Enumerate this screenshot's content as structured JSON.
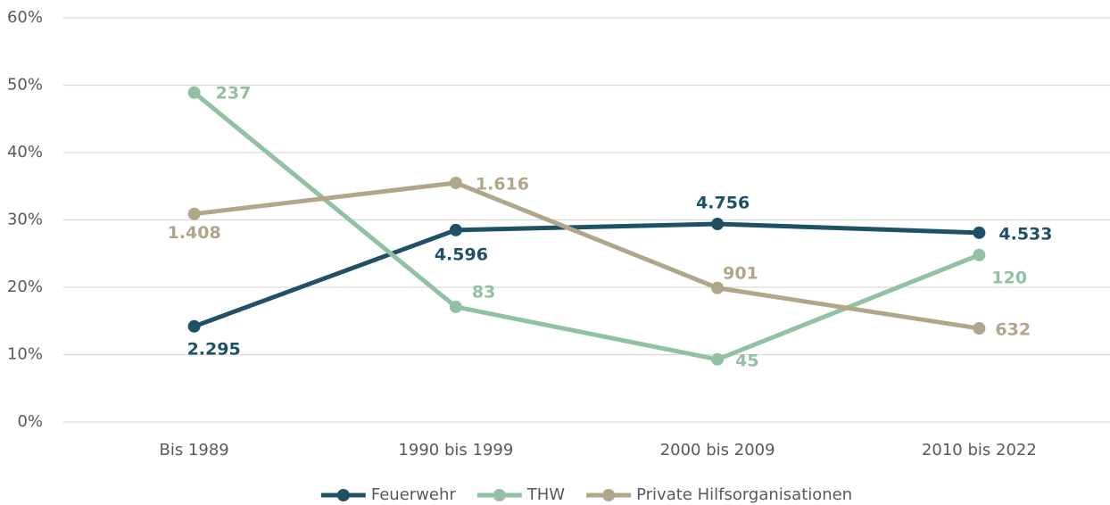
{
  "chart_data": {
    "type": "line",
    "categories": [
      "Bis 1989",
      "1990 bis 1999",
      "2000 bis 2009",
      "2010 bis 2022"
    ],
    "series": [
      {
        "name": "Feuerwehr",
        "color": "#1f5166",
        "values": [
          14.2,
          28.5,
          29.4,
          28.1
        ],
        "labels": [
          "2.295",
          "4.596",
          "4.756",
          "4.533"
        ]
      },
      {
        "name": "THW",
        "color": "#8fc1a2",
        "values": [
          48.9,
          17.1,
          9.3,
          24.8
        ],
        "labels": [
          "237",
          "83",
          "45",
          "120"
        ]
      },
      {
        "name": "Private Hilfsorganisationen",
        "color": "#b1a68a",
        "values": [
          30.9,
          35.5,
          19.9,
          13.9
        ],
        "labels": [
          "1.408",
          "1.616",
          "901",
          "632"
        ]
      }
    ],
    "ylim": [
      0,
      60
    ],
    "yticks": [
      {
        "value": 0,
        "label": "0%"
      },
      {
        "value": 10,
        "label": "10%"
      },
      {
        "value": 20,
        "label": "20%"
      },
      {
        "value": 30,
        "label": "30%"
      },
      {
        "value": 40,
        "label": "40%"
      },
      {
        "value": 50,
        "label": "50%"
      },
      {
        "value": 60,
        "label": "60%"
      }
    ],
    "grid": true,
    "legend": "bottom"
  }
}
